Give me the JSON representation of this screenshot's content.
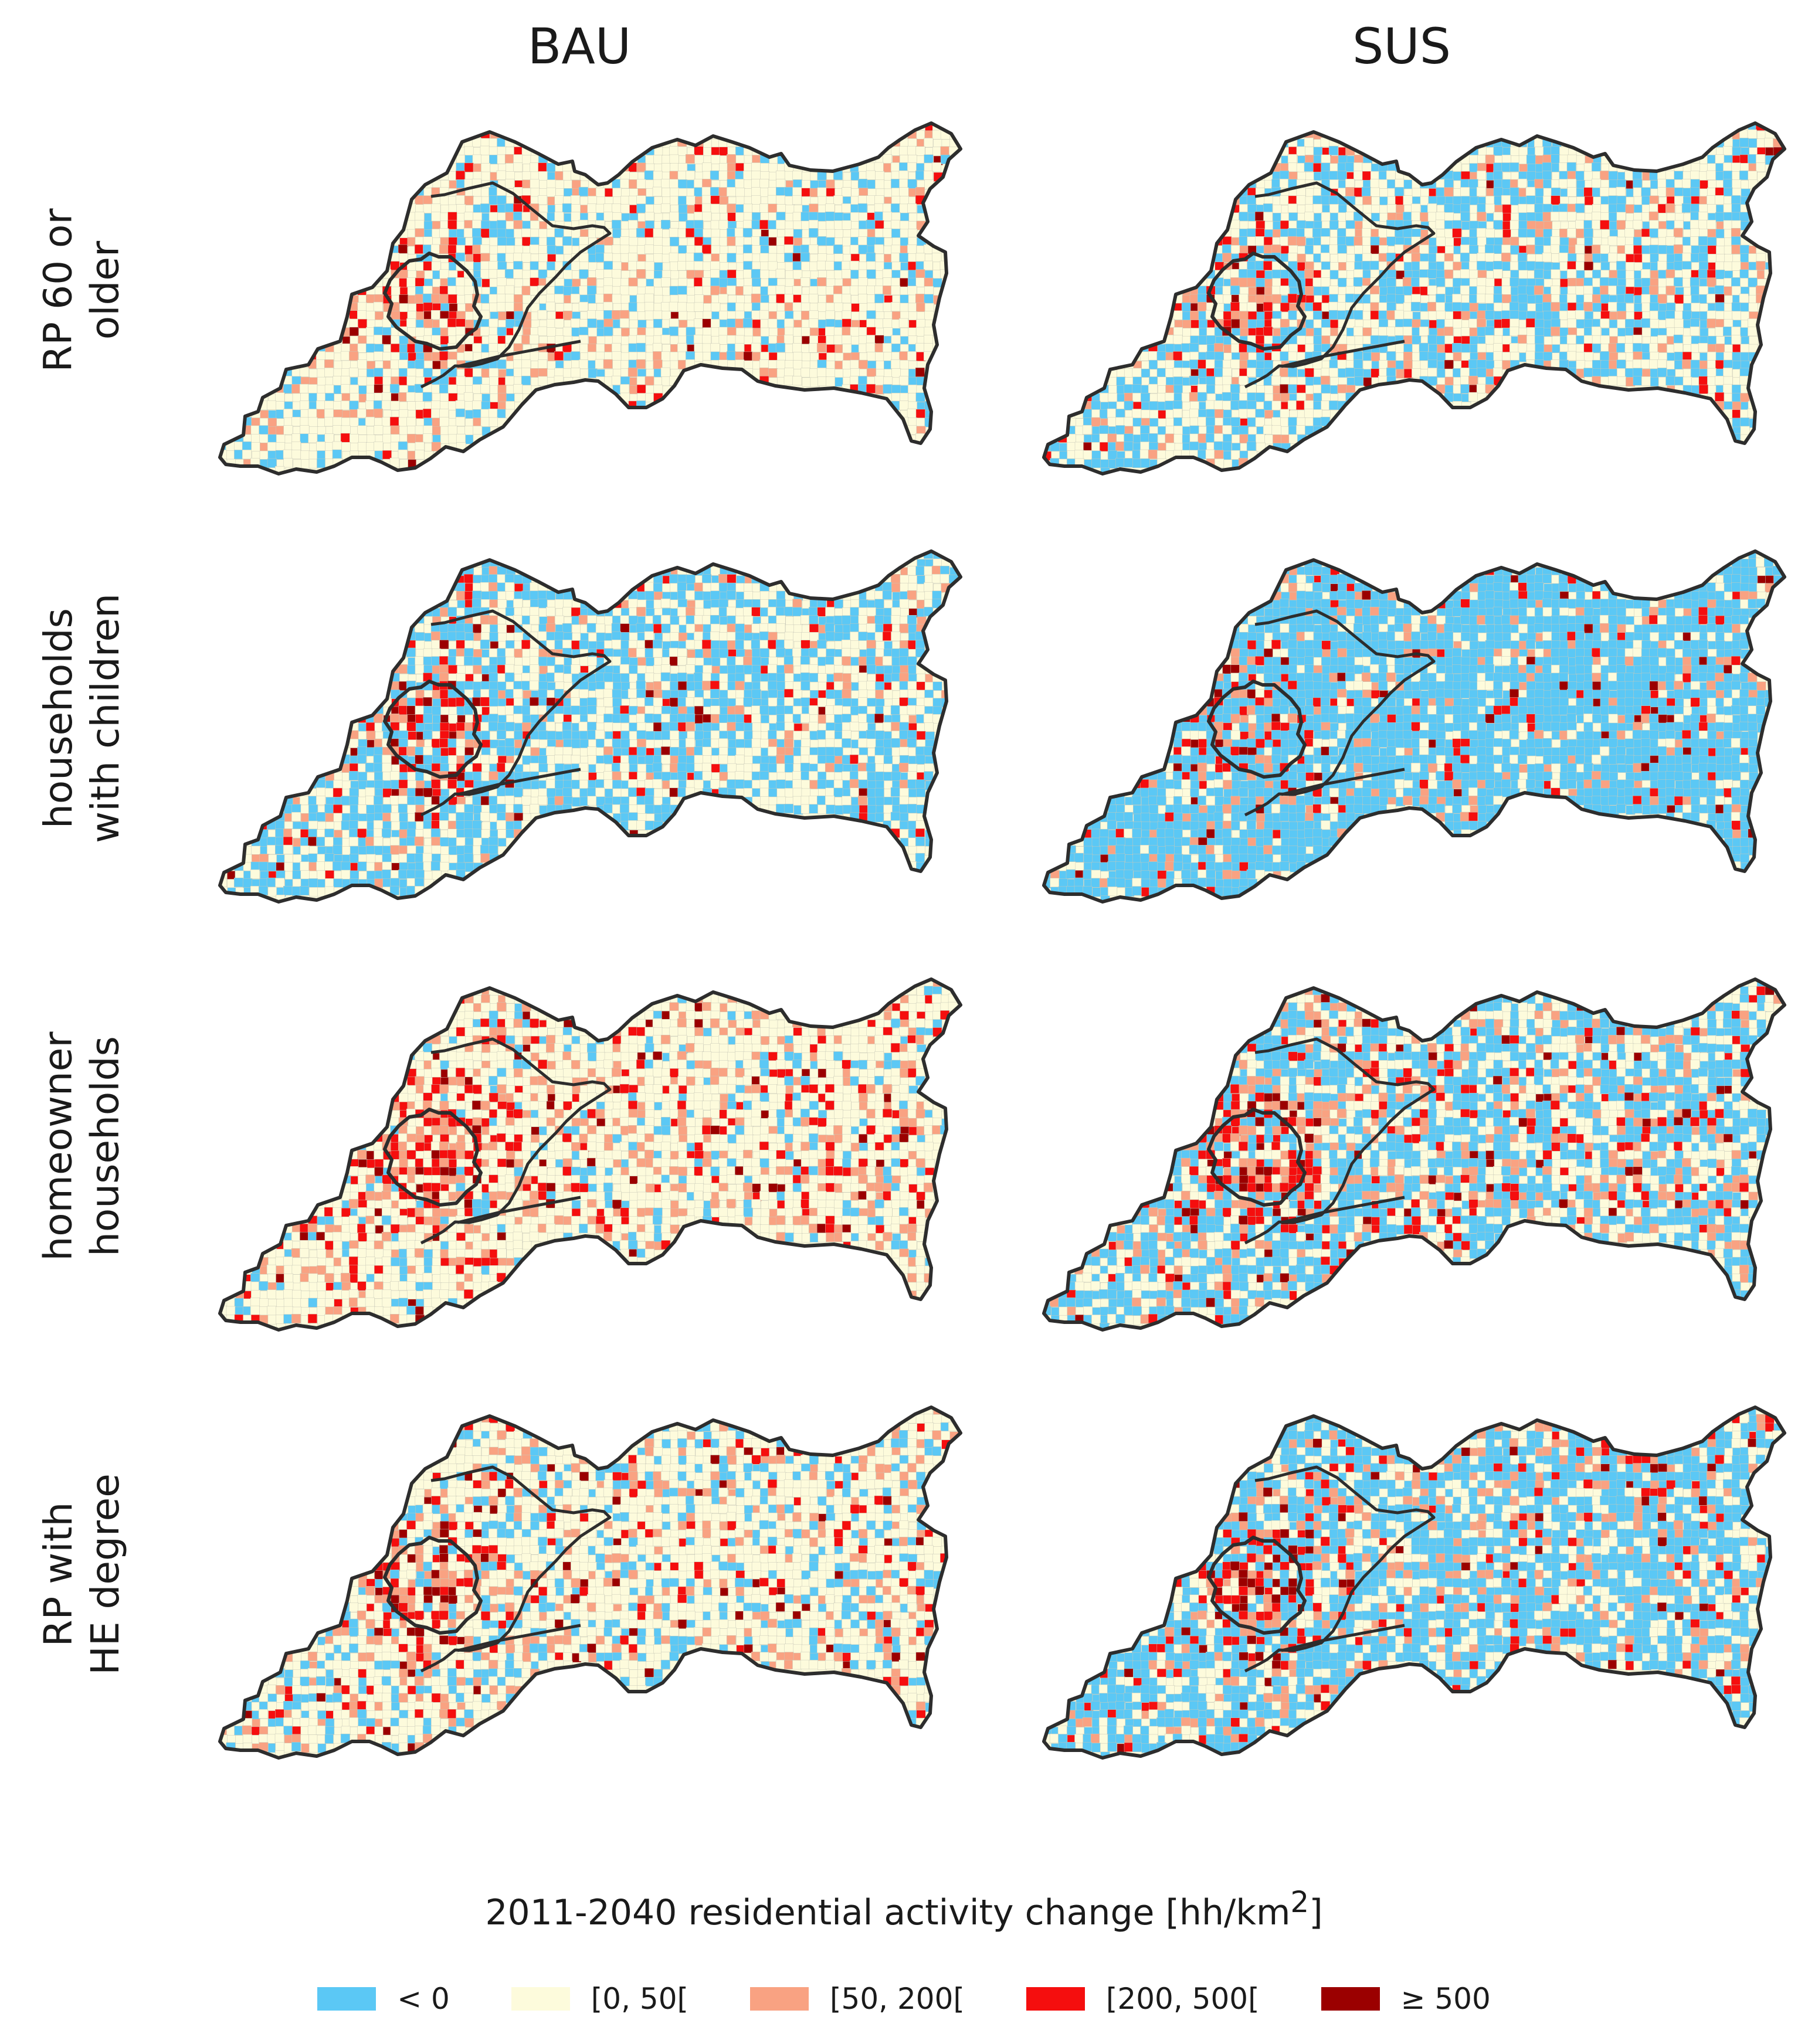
{
  "columns": [
    "BAU",
    "SUS"
  ],
  "rows": [
    {
      "line1": "RP 60 or",
      "line2": "older"
    },
    {
      "line1": "households",
      "line2": "with children"
    },
    {
      "line1": "homeowner",
      "line2": "households"
    },
    {
      "line1": "RP with",
      "line2": "HE degree"
    }
  ],
  "legend": {
    "title_main": "2011-2040 residential activity change [hh/km",
    "title_sup": "2",
    "title_end": "]",
    "classes": [
      {
        "label": "< 0",
        "color": "#5bc8f5"
      },
      {
        "label": "[0, 50[",
        "color": "#fdfbdc"
      },
      {
        "label": "[50, 200[",
        "color": "#f9a282"
      },
      {
        "label": "[200, 500[",
        "color": "#f50e0e"
      },
      {
        "label": "≥  500",
        "color": "#9b0000"
      }
    ]
  },
  "panels": [
    {
      "scenario": "BAU",
      "group": "RP 60 or older",
      "share": [
        0.18,
        0.66,
        0.11,
        0.04,
        0.01
      ]
    },
    {
      "scenario": "SUS",
      "group": "RP 60 or older",
      "share": [
        0.4,
        0.43,
        0.11,
        0.05,
        0.01
      ]
    },
    {
      "scenario": "BAU",
      "group": "households with children",
      "share": [
        0.46,
        0.4,
        0.08,
        0.04,
        0.02
      ]
    },
    {
      "scenario": "SUS",
      "group": "households with children",
      "share": [
        0.74,
        0.13,
        0.07,
        0.04,
        0.02
      ]
    },
    {
      "scenario": "BAU",
      "group": "homeowner households",
      "share": [
        0.12,
        0.63,
        0.15,
        0.08,
        0.02
      ]
    },
    {
      "scenario": "SUS",
      "group": "homeowner households",
      "share": [
        0.46,
        0.3,
        0.14,
        0.08,
        0.02
      ]
    },
    {
      "scenario": "BAU",
      "group": "RP with HE degree",
      "share": [
        0.22,
        0.58,
        0.13,
        0.05,
        0.02
      ]
    },
    {
      "scenario": "SUS",
      "group": "RP with HE degree",
      "share": [
        0.56,
        0.27,
        0.1,
        0.05,
        0.02
      ]
    }
  ]
}
